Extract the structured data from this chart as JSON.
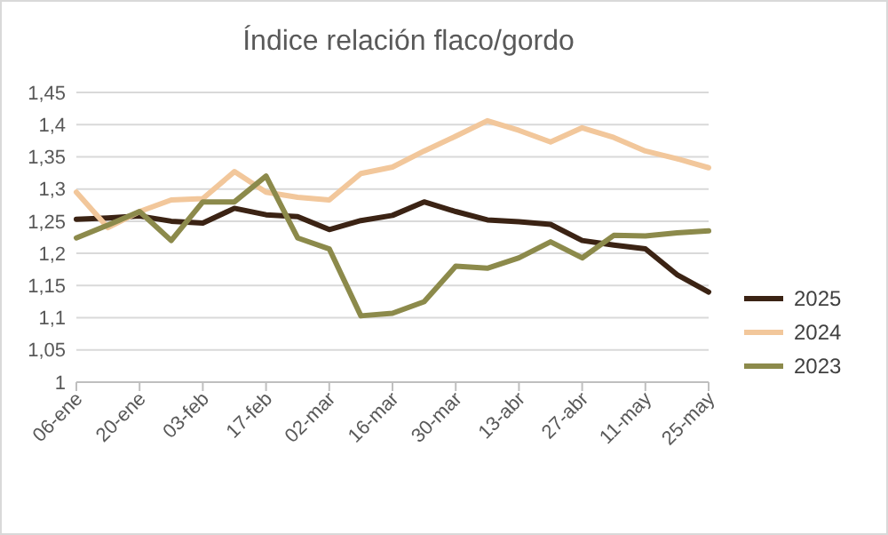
{
  "chart_data": {
    "type": "line",
    "title": "Índice relación flaco/gordo",
    "categories": [
      "06-ene",
      null,
      "20-ene",
      null,
      "03-feb",
      null,
      "17-feb",
      null,
      "02-mar",
      null,
      "16-mar",
      null,
      "30-mar",
      null,
      "13-abr",
      null,
      "27-abr",
      null,
      "11-may",
      null,
      "25-may"
    ],
    "series": [
      {
        "name": "2025",
        "color": "#3b2314",
        "values": [
          1.253,
          1.255,
          1.258,
          1.25,
          1.247,
          1.27,
          1.26,
          1.257,
          1.237,
          1.251,
          1.259,
          1.28,
          1.265,
          1.252,
          1.249,
          1.245,
          1.22,
          1.213,
          1.207,
          1.167,
          1.14
        ]
      },
      {
        "name": "2024",
        "color": "#f2c79b",
        "values": [
          1.295,
          1.24,
          1.265,
          1.283,
          1.285,
          1.327,
          1.295,
          1.287,
          1.283,
          1.324,
          1.334,
          1.359,
          1.382,
          1.406,
          1.391,
          1.373,
          1.395,
          1.38,
          1.359,
          1.347,
          1.333
        ]
      },
      {
        "name": "2023",
        "color": "#8c8a4b",
        "values": [
          1.224,
          1.244,
          1.265,
          1.22,
          1.28,
          1.28,
          1.32,
          1.224,
          1.207,
          1.103,
          1.107,
          1.125,
          1.18,
          1.177,
          1.193,
          1.218,
          1.193,
          1.228,
          1.227,
          1.232,
          1.235
        ]
      }
    ],
    "ylim": [
      1,
      1.45
    ],
    "yticks": [
      {
        "value": 1,
        "label": "1"
      },
      {
        "value": 1.05,
        "label": "1,05"
      },
      {
        "value": 1.1,
        "label": "1,1"
      },
      {
        "value": 1.15,
        "label": "1,15"
      },
      {
        "value": 1.2,
        "label": "1,2"
      },
      {
        "value": 1.25,
        "label": "1,25"
      },
      {
        "value": 1.3,
        "label": "1,3"
      },
      {
        "value": 1.35,
        "label": "1,35"
      },
      {
        "value": 1.4,
        "label": "1,4"
      },
      {
        "value": 1.45,
        "label": "1,45"
      }
    ],
    "grid": "y",
    "legend": "right",
    "marker": "none",
    "line_style": "solid"
  }
}
